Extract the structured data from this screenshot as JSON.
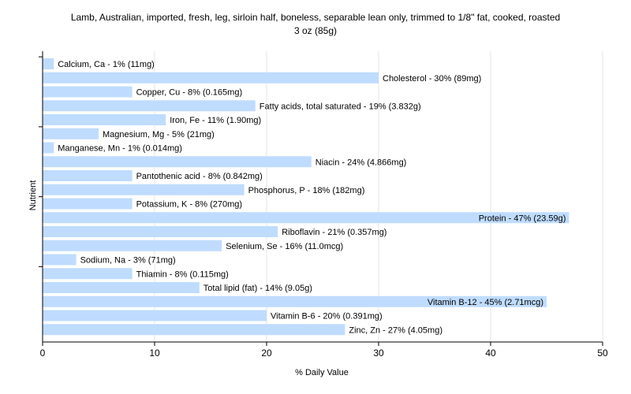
{
  "chart_data": {
    "type": "bar",
    "orientation": "horizontal",
    "title_line1": "Lamb, Australian, imported, fresh, leg, sirloin half, boneless, separable lean only, trimmed to 1/8\" fat, cooked, roasted",
    "title_line2": "3 oz (85g)",
    "xlabel": "% Daily Value",
    "ylabel": "Nutrient",
    "xlim": [
      0,
      50
    ],
    "xticks": [
      0,
      10,
      20,
      30,
      40,
      50
    ],
    "grid": true,
    "colors": {
      "bar": "#bfdcff"
    },
    "categories": [
      "Calcium, Ca",
      "Cholesterol",
      "Copper, Cu",
      "Fatty acids, total saturated",
      "Iron, Fe",
      "Magnesium, Mg",
      "Manganese, Mn",
      "Niacin",
      "Pantothenic acid",
      "Phosphorus, P",
      "Potassium, K",
      "Protein",
      "Riboflavin",
      "Selenium, Se",
      "Sodium, Na",
      "Thiamin",
      "Total lipid (fat)",
      "Vitamin B-12",
      "Vitamin B-6",
      "Zinc, Zn"
    ],
    "values": [
      1,
      30,
      8,
      19,
      11,
      5,
      1,
      24,
      8,
      18,
      8,
      47,
      21,
      16,
      3,
      8,
      14,
      45,
      20,
      27
    ],
    "labels": [
      "Calcium, Ca - 1% (11mg)",
      "Cholesterol - 30% (89mg)",
      "Copper, Cu - 8% (0.165mg)",
      "Fatty acids, total saturated - 19% (3.832g)",
      "Iron, Fe - 11% (1.90mg)",
      "Magnesium, Mg - 5% (21mg)",
      "Manganese, Mn - 1% (0.014mg)",
      "Niacin - 24% (4.866mg)",
      "Pantothenic acid - 8% (0.842mg)",
      "Phosphorus, P - 18% (182mg)",
      "Potassium, K - 8% (270mg)",
      "Protein - 47% (23.59g)",
      "Riboflavin - 21% (0.357mg)",
      "Selenium, Se - 16% (11.0mcg)",
      "Sodium, Na - 3% (71mg)",
      "Thiamin - 8% (0.115mg)",
      "Total lipid (fat) - 14% (9.05g)",
      "Vitamin B-12 - 45% (2.71mcg)",
      "Vitamin B-6 - 20% (0.391mg)",
      "Zinc, Zn - 27% (4.05mg)"
    ]
  }
}
